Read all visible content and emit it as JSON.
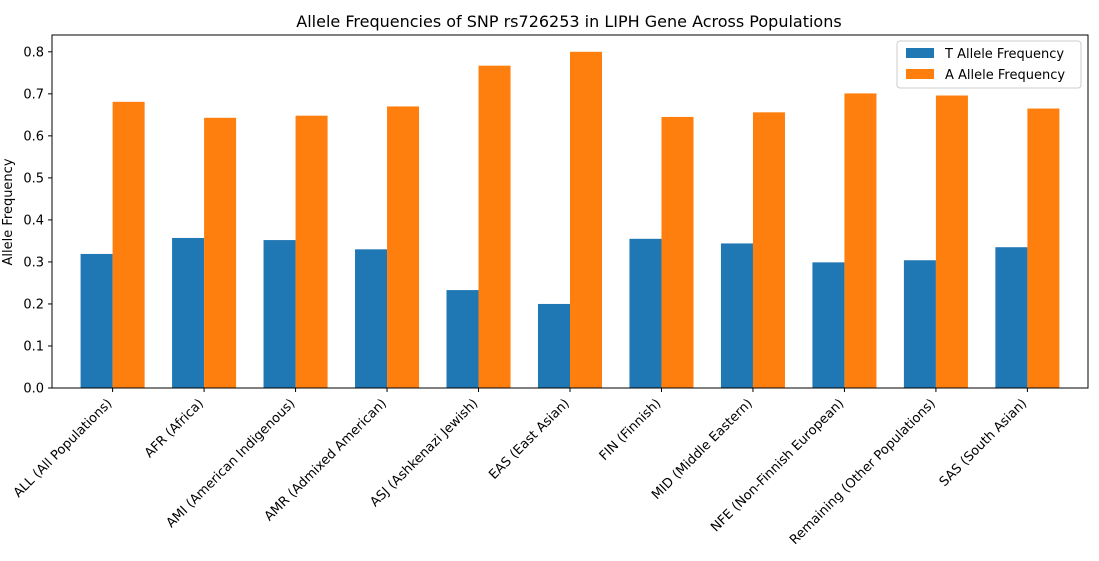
{
  "chart_data": {
    "type": "bar",
    "title": "Allele Frequencies of SNP rs726253 in LIPH Gene Across Populations",
    "xlabel": "",
    "ylabel": "Allele Frequency",
    "ylim": [
      0,
      0.84
    ],
    "yticks": [
      "0.0",
      "0.1",
      "0.2",
      "0.3",
      "0.4",
      "0.5",
      "0.6",
      "0.7",
      "0.8"
    ],
    "grid": false,
    "legend_position": "top-right",
    "categories": [
      "ALL (All Populations)",
      "AFR (Africa)",
      "AMI (American Indigenous)",
      "AMR (Admixed American)",
      "ASJ (Ashkenazi Jewish)",
      "EAS (East Asian)",
      "FIN (Finnish)",
      "MID (Middle Eastern)",
      "NFE (Non-Finnish European)",
      "Remaining (Other Populations)",
      "SAS (South Asian)"
    ],
    "series": [
      {
        "name": "T Allele Frequency",
        "color": "#1f77b4",
        "values": [
          0.319,
          0.357,
          0.352,
          0.33,
          0.233,
          0.2,
          0.355,
          0.344,
          0.299,
          0.304,
          0.335
        ]
      },
      {
        "name": "A Allele Frequency",
        "color": "#ff7f0e",
        "values": [
          0.681,
          0.643,
          0.648,
          0.67,
          0.767,
          0.8,
          0.645,
          0.656,
          0.701,
          0.696,
          0.665
        ]
      }
    ]
  }
}
